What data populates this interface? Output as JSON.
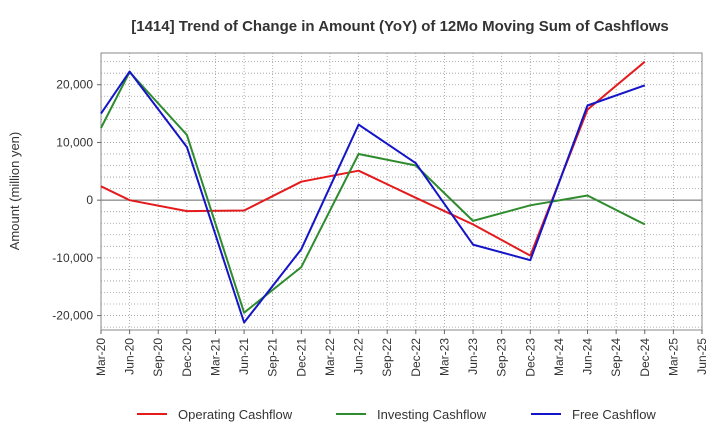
{
  "chart_data": {
    "type": "line",
    "title": "[1414]  Trend of Change in Amount (YoY) of 12Mo Moving Sum of Cashflows",
    "xlabel": "",
    "ylabel": "Amount (million yen)",
    "ylim": [
      -22500,
      25500
    ],
    "yticks": [
      -20000,
      -10000,
      0,
      10000,
      20000
    ],
    "ytick_labels": [
      "-20,000",
      "-10,000",
      "0",
      "10,000",
      "20,000"
    ],
    "categories": [
      "Mar-20",
      "Jun-20",
      "Sep-20",
      "Dec-20",
      "Mar-21",
      "Jun-21",
      "Sep-21",
      "Dec-21",
      "Mar-22",
      "Jun-22",
      "Sep-22",
      "Dec-22",
      "Mar-23",
      "Jun-23",
      "Sep-23",
      "Dec-23",
      "Mar-24",
      "Jun-24",
      "Sep-24",
      "Dec-24",
      "Mar-25",
      "Jun-25"
    ],
    "grid": true,
    "legend_position": "bottom",
    "series": [
      {
        "name": "Operating Cashflow",
        "color": "#e41a1c",
        "values": [
          2400,
          0,
          null,
          -1900,
          null,
          -1800,
          null,
          3200,
          null,
          5100,
          null,
          400,
          null,
          -4200,
          null,
          -9600,
          null,
          15700,
          null,
          24000,
          null,
          null
        ]
      },
      {
        "name": "Investing Cashflow",
        "color": "#2e8b2e",
        "values": [
          12500,
          22200,
          null,
          11300,
          null,
          -19500,
          null,
          -11600,
          null,
          8000,
          null,
          6000,
          null,
          -3600,
          null,
          -900,
          null,
          800,
          null,
          -4200,
          null,
          null
        ]
      },
      {
        "name": "Free Cashflow",
        "color": "#1515c8",
        "values": [
          15000,
          22300,
          null,
          9200,
          null,
          -21200,
          null,
          -8500,
          null,
          13100,
          null,
          6400,
          null,
          -7700,
          null,
          -10400,
          null,
          16400,
          null,
          19900,
          null,
          null
        ]
      }
    ]
  }
}
